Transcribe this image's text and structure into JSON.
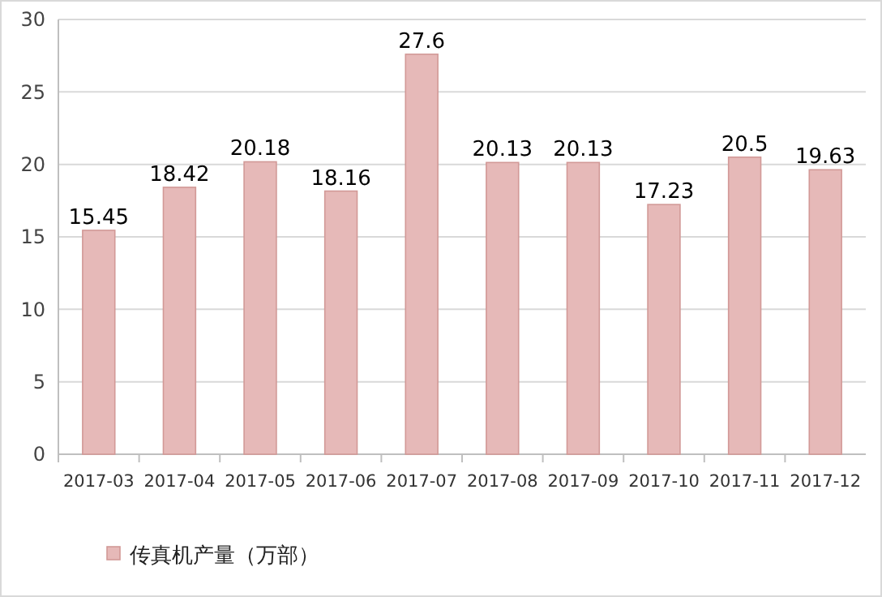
{
  "chart_data": {
    "type": "bar",
    "categories": [
      "2017-03",
      "2017-04",
      "2017-05",
      "2017-06",
      "2017-07",
      "2017-08",
      "2017-09",
      "2017-10",
      "2017-11",
      "2017-12"
    ],
    "series": [
      {
        "name": "传真机产量（万部）",
        "color": "#e6b9b8",
        "values": [
          15.45,
          18.42,
          20.18,
          18.16,
          27.6,
          20.13,
          20.13,
          17.23,
          20.5,
          19.63
        ]
      }
    ],
    "ylim": [
      0,
      30
    ],
    "yticks": [
      0,
      5,
      10,
      15,
      20,
      25,
      30
    ],
    "grid": "y",
    "legend": "bottom left",
    "data_labels": true
  }
}
